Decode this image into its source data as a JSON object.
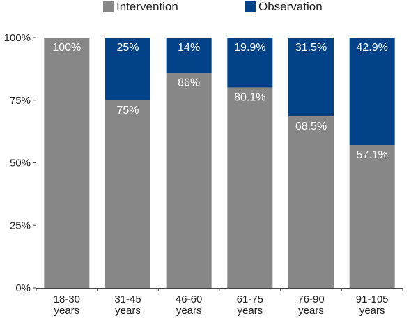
{
  "chart_data": {
    "type": "bar",
    "stacked": true,
    "categories": [
      [
        "18-30",
        "years"
      ],
      [
        "31-45",
        "years"
      ],
      [
        "46-60",
        "years"
      ],
      [
        "61-75",
        "years"
      ],
      [
        "76-90",
        "years"
      ],
      [
        "91-105",
        "years"
      ]
    ],
    "series": [
      {
        "name": "Intervention",
        "color": "#878787",
        "values": [
          100,
          75,
          86,
          80.1,
          68.5,
          57.1
        ],
        "labels": [
          "100%",
          "75%",
          "86%",
          "80.1%",
          "68.5%",
          "57.1%"
        ]
      },
      {
        "name": "Observation",
        "color": "#014289",
        "values": [
          0,
          25,
          14,
          19.9,
          31.5,
          42.9
        ],
        "labels": [
          "",
          "25%",
          "14%",
          "19.9%",
          "31.5%",
          "42.9%"
        ]
      }
    ],
    "ylim": [
      0,
      100
    ],
    "yticks": [
      0,
      25,
      50,
      75,
      100
    ],
    "ytick_labels": [
      "0%",
      "25%",
      "50%",
      "75%",
      "100%"
    ],
    "legend_position": "top-center",
    "grid": false,
    "title": "",
    "xlabel": "",
    "ylabel": ""
  }
}
